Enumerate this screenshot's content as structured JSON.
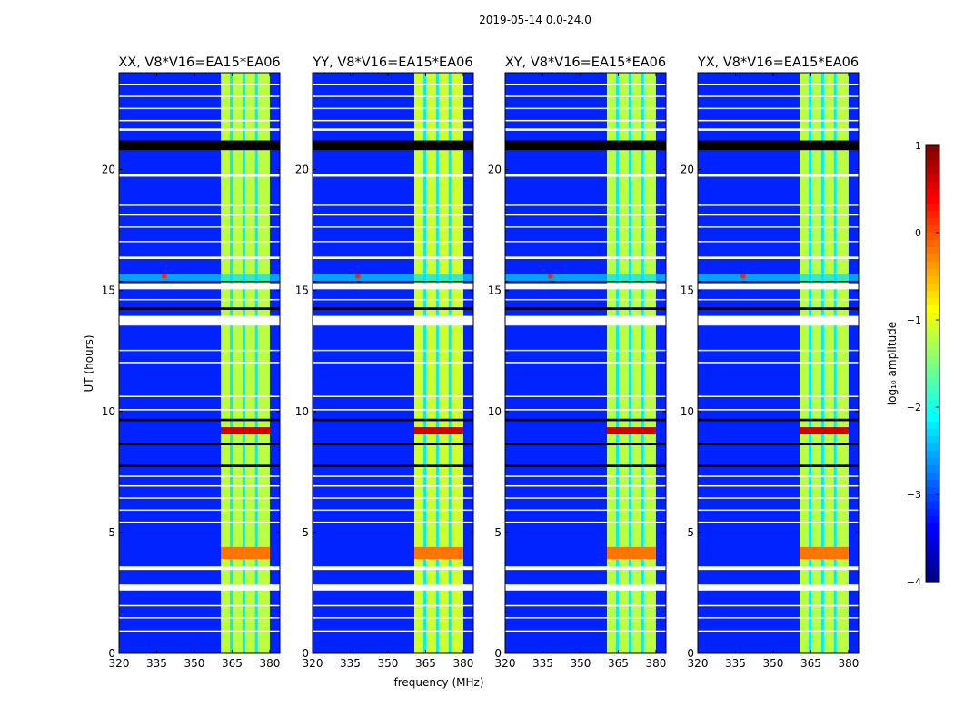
{
  "chart_data": {
    "type": "heatmap",
    "suptitle": "2019-05-14 0.0-24.0",
    "xlabel": "frequency (MHz)",
    "ylabel": "UT (hours)",
    "xlim": [
      320,
      384
    ],
    "ylim": [
      0,
      24
    ],
    "xticks": [
      320,
      335,
      350,
      365,
      380
    ],
    "yticks": [
      0,
      5,
      10,
      15,
      20
    ],
    "panels": [
      {
        "title": "XX, V8*V16=EA15*EA06"
      },
      {
        "title": "YY, V8*V16=EA15*EA06"
      },
      {
        "title": "XY, V8*V16=EA15*EA06"
      },
      {
        "title": "YX, V8*V16=EA15*EA06"
      }
    ],
    "colorbar": {
      "label": "log₁₀ amplitude",
      "range": [
        -4,
        1
      ],
      "ticks": [
        1,
        0,
        -1,
        -2,
        -3,
        -4
      ],
      "tick_labels": [
        "1",
        "0",
        "−1",
        "−2",
        "−3",
        "−4"
      ],
      "colormap": "jet"
    },
    "background_level": -3.2,
    "band": {
      "freq_range": [
        360.5,
        380
      ],
      "level": -1.2,
      "gaps_mhz": [
        364.5,
        369.5,
        374.5
      ]
    },
    "flagged_hours": [
      [
        2.6,
        2.85
      ],
      [
        3.45,
        3.6
      ],
      [
        13.55,
        13.95
      ],
      [
        14.6,
        14.65
      ],
      [
        15.05,
        15.3
      ],
      [
        19.7,
        19.8
      ],
      [
        0.9,
        0.95
      ],
      [
        1.45,
        1.5
      ],
      [
        1.95,
        2.0
      ],
      [
        5.4,
        5.45
      ],
      [
        5.9,
        5.95
      ],
      [
        6.4,
        6.45
      ],
      [
        6.9,
        6.95
      ],
      [
        7.3,
        7.35
      ],
      [
        10.05,
        10.1
      ],
      [
        10.6,
        10.65
      ],
      [
        12.0,
        12.05
      ],
      [
        12.5,
        12.55
      ],
      [
        16.3,
        16.4
      ],
      [
        17.0,
        17.05
      ],
      [
        17.6,
        17.65
      ],
      [
        18.1,
        18.15
      ],
      [
        18.5,
        18.55
      ],
      [
        21.6,
        21.7
      ],
      [
        22.0,
        22.05
      ],
      [
        22.5,
        22.55
      ],
      [
        23.0,
        23.05
      ],
      [
        23.5,
        23.55
      ]
    ],
    "dark_hours": [
      [
        7.7,
        7.8
      ],
      [
        8.6,
        8.7
      ],
      [
        9.6,
        9.7
      ],
      [
        14.2,
        14.3
      ],
      [
        15.35,
        15.4
      ],
      [
        20.8,
        21.2
      ]
    ],
    "hot_rows": [
      {
        "range": [
          9.05,
          9.35
        ],
        "level": 0.6
      },
      {
        "range": [
          3.9,
          4.4
        ],
        "level": -0.2
      }
    ]
  }
}
